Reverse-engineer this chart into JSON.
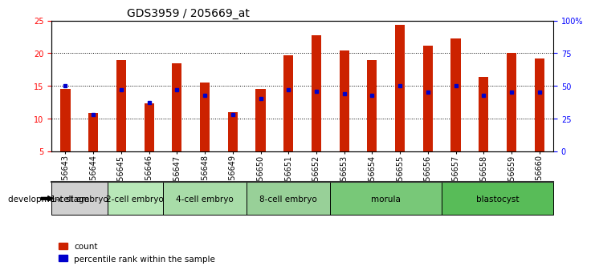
{
  "title": "GDS3959 / 205669_at",
  "samples": [
    "GSM456643",
    "GSM456644",
    "GSM456645",
    "GSM456646",
    "GSM456647",
    "GSM456648",
    "GSM456649",
    "GSM456650",
    "GSM456651",
    "GSM456652",
    "GSM456653",
    "GSM456654",
    "GSM456655",
    "GSM456656",
    "GSM456657",
    "GSM456658",
    "GSM456659",
    "GSM456660"
  ],
  "count_values": [
    14.5,
    10.8,
    18.9,
    12.3,
    18.5,
    15.5,
    11.0,
    14.5,
    19.7,
    22.8,
    20.4,
    18.9,
    24.3,
    21.1,
    22.2,
    16.4,
    20.0,
    19.2
  ],
  "percentile_values": [
    50,
    28,
    47,
    37,
    47,
    43,
    28,
    40,
    47,
    46,
    44,
    43,
    50,
    45,
    50,
    43,
    45,
    45
  ],
  "stage_defs": [
    {
      "label": "1-cell embryo",
      "indices": [
        0,
        1
      ],
      "color": "#d0d0d0"
    },
    {
      "label": "2-cell embryo",
      "indices": [
        2,
        3
      ],
      "color": "#b8e8b8"
    },
    {
      "label": "4-cell embryo",
      "indices": [
        4,
        5,
        6
      ],
      "color": "#a8dca8"
    },
    {
      "label": "8-cell embryo",
      "indices": [
        7,
        8,
        9
      ],
      "color": "#98d098"
    },
    {
      "label": "morula",
      "indices": [
        10,
        11,
        12,
        13
      ],
      "color": "#78c878"
    },
    {
      "label": "blastocyst",
      "indices": [
        14,
        15,
        16,
        17
      ],
      "color": "#58bc58"
    }
  ],
  "ylim_left": [
    5,
    25
  ],
  "ylim_right": [
    0,
    100
  ],
  "yticks_left": [
    5,
    10,
    15,
    20,
    25
  ],
  "yticks_right": [
    0,
    25,
    50,
    75,
    100
  ],
  "ytick_labels_right": [
    "0",
    "25",
    "50",
    "75",
    "100%"
  ],
  "bar_color": "#cc2200",
  "dot_color": "#0000cc",
  "bar_width": 0.35,
  "background_color": "#ffffff",
  "title_fontsize": 10,
  "tick_fontsize": 7,
  "stage_fontsize": 7.5,
  "legend_fontsize": 7.5
}
